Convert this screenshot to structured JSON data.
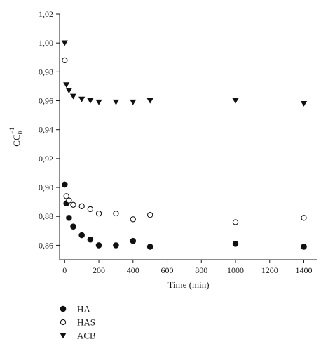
{
  "chart_data": {
    "type": "scatter",
    "xlabel": "Time (min)",
    "ylabel": {
      "base": "CC",
      "sub": "0",
      "sup": "−1"
    },
    "xlim": [
      -30,
      1480
    ],
    "ylim": [
      0.85,
      1.02
    ],
    "x_ticks": [
      0,
      200,
      400,
      600,
      800,
      1000,
      1200,
      1400
    ],
    "y_ticks": [
      0.86,
      0.88,
      0.9,
      0.92,
      0.94,
      0.96,
      0.98,
      1.0,
      1.02
    ],
    "x_tick_labels": [
      "0",
      "200",
      "400",
      "600",
      "800",
      "1000",
      "1200",
      "1400"
    ],
    "y_tick_labels": [
      "0,86",
      "0,88",
      "0,90",
      "0,92",
      "0,94",
      "0,96",
      "0,98",
      "1,00",
      "1,02"
    ],
    "grid": false,
    "legend_position": "bottom-left",
    "series": [
      {
        "name": "HA",
        "marker": "filled-circle",
        "x": [
          0,
          10,
          25,
          50,
          100,
          150,
          200,
          300,
          400,
          500,
          1000,
          1400
        ],
        "y": [
          0.902,
          0.889,
          0.879,
          0.873,
          0.867,
          0.864,
          0.86,
          0.86,
          0.863,
          0.859,
          0.861,
          0.859
        ]
      },
      {
        "name": "HAS",
        "marker": "open-circle",
        "x": [
          0,
          10,
          25,
          50,
          100,
          150,
          200,
          300,
          400,
          500,
          1000,
          1400
        ],
        "y": [
          0.988,
          0.894,
          0.891,
          0.888,
          0.887,
          0.885,
          0.882,
          0.882,
          0.878,
          0.881,
          0.876,
          0.879
        ]
      },
      {
        "name": "ACB",
        "marker": "filled-triangle-down",
        "x": [
          0,
          10,
          25,
          50,
          100,
          150,
          200,
          300,
          400,
          500,
          1000,
          1400
        ],
        "y": [
          1.0,
          0.971,
          0.967,
          0.963,
          0.961,
          0.96,
          0.959,
          0.959,
          0.959,
          0.96,
          0.96,
          0.958
        ]
      }
    ]
  }
}
